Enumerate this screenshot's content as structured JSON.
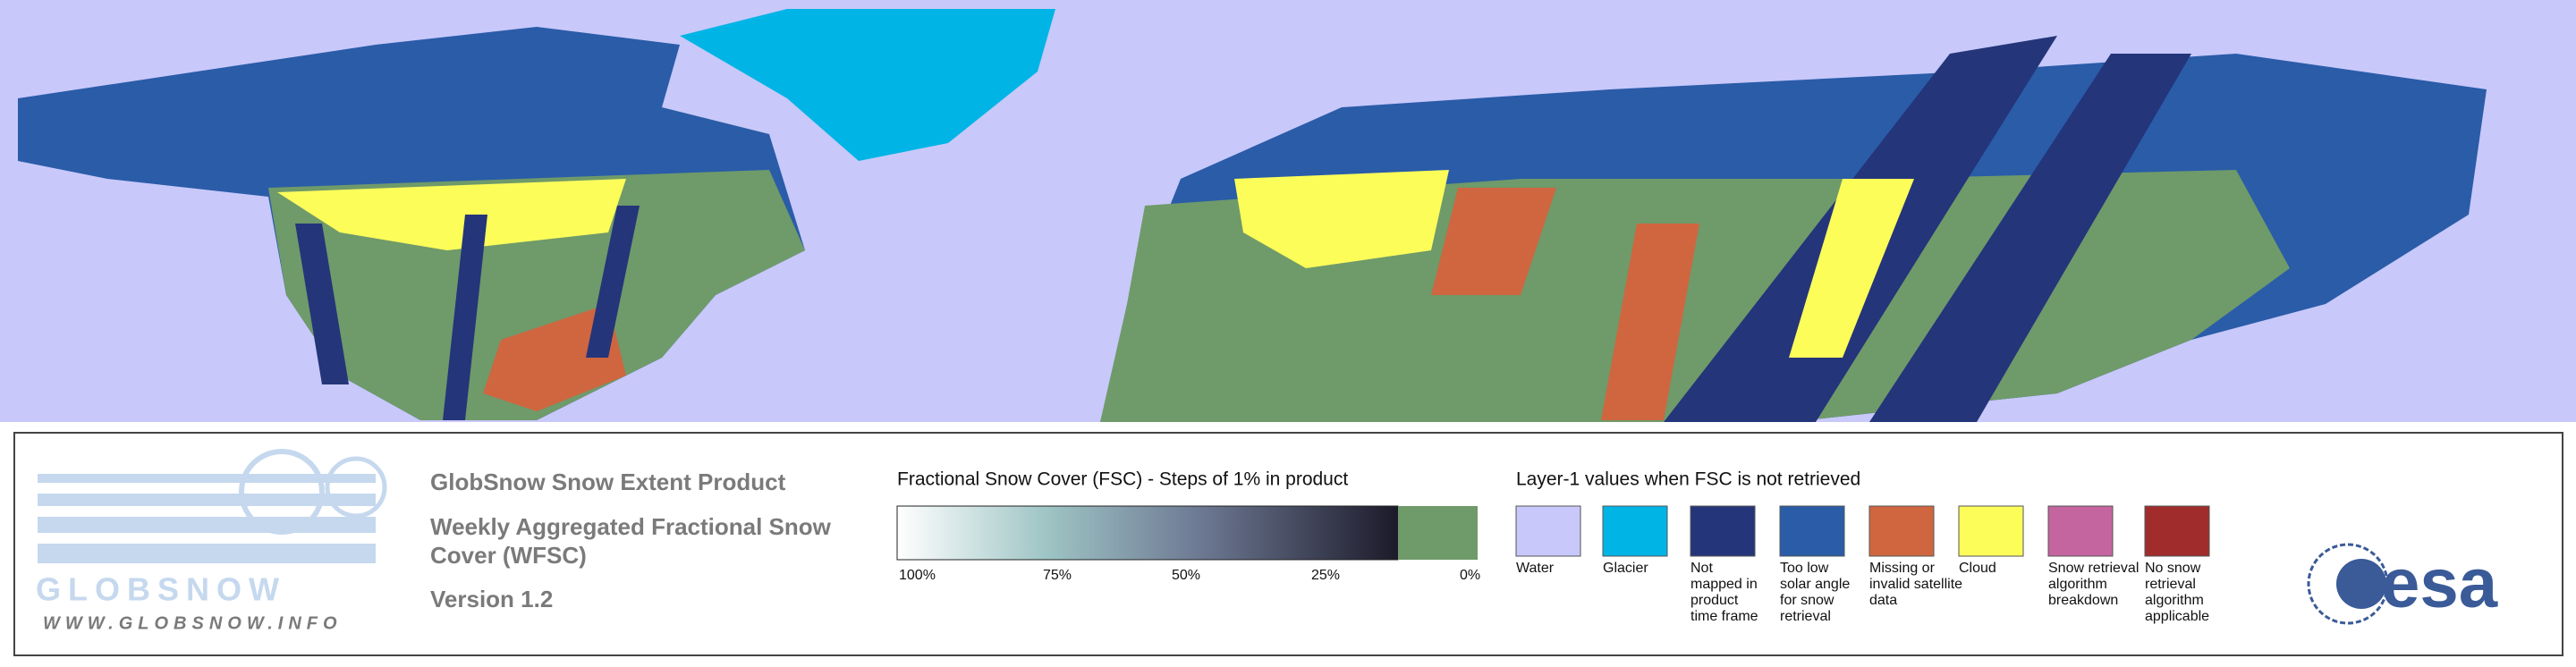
{
  "logo": {
    "name": "GLOBSNOW",
    "url": "WWW.GLOBSNOW.INFO"
  },
  "header": {
    "title": "GlobSnow Snow Extent Product",
    "subtitle_lines": [
      "Weekly Aggregated Fractional Snow",
      "Cover (WFSC)"
    ],
    "version": "Version 1.2"
  },
  "fsc_legend": {
    "title": "Fractional Snow Cover (FSC) - Steps of 1% in product",
    "ticks": [
      "100%",
      "75%",
      "50%",
      "25%",
      "0%"
    ]
  },
  "layer1": {
    "title": "Layer-1 values when FSC is not retrieved",
    "items": [
      {
        "color": "#c8c8fa",
        "label": [
          "Water"
        ]
      },
      {
        "color": "#00b4e6",
        "label": [
          "Glacier"
        ]
      },
      {
        "color": "#24357a",
        "label": [
          "Not",
          "mapped in",
          "product",
          "time frame"
        ]
      },
      {
        "color": "#2a5ca8",
        "label": [
          "Too low",
          "solar angle",
          "for snow",
          "retrieval"
        ]
      },
      {
        "color": "#cf6640",
        "label": [
          "Missing or",
          "invalid satellite",
          "data"
        ]
      },
      {
        "color": "#fdfd5a",
        "label": [
          "Cloud"
        ]
      },
      {
        "color": "#c465a0",
        "label": [
          "Snow retrieval",
          "algorithm",
          "breakdown"
        ]
      },
      {
        "color": "#a02c2c",
        "label": [
          "No snow",
          "retrieval",
          "algorithm",
          "applicable"
        ]
      }
    ]
  },
  "agency_logo": "esa"
}
